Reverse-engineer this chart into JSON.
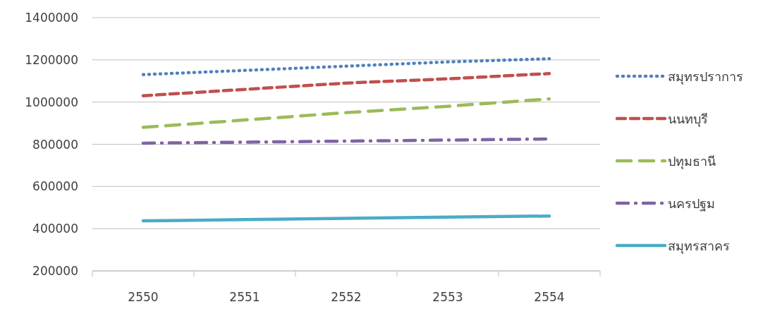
{
  "chart_data": {
    "type": "line",
    "categories": [
      "2550",
      "2551",
      "2552",
      "2553",
      "2554"
    ],
    "ylim": [
      200000,
      1400000
    ],
    "yticks": [
      200000,
      400000,
      600000,
      800000,
      1000000,
      1200000,
      1400000
    ],
    "grid": "y",
    "legend": "right",
    "marker": "none",
    "series": [
      {
        "name": "สมุทรปราการ",
        "color": "#4f81bd",
        "line_style": "dotted",
        "values": [
          1130000,
          1150000,
          1170000,
          1190000,
          1205000
        ]
      },
      {
        "name": "นนทบุรี",
        "color": "#c0504d",
        "line_style": "dashed",
        "values": [
          1030000,
          1060000,
          1090000,
          1110000,
          1135000
        ]
      },
      {
        "name": "ปทุมธานี",
        "color": "#9bbb59",
        "line_style": "longdash",
        "values": [
          880000,
          915000,
          950000,
          980000,
          1015000
        ]
      },
      {
        "name": "นครปฐม",
        "color": "#8064a2",
        "line_style": "dashdot",
        "values": [
          805000,
          810000,
          815000,
          820000,
          825000
        ]
      },
      {
        "name": "สมุทรสาคร",
        "color": "#4bacc6",
        "line_style": "solid",
        "values": [
          437000,
          443000,
          449000,
          455000,
          460000
        ]
      }
    ]
  }
}
